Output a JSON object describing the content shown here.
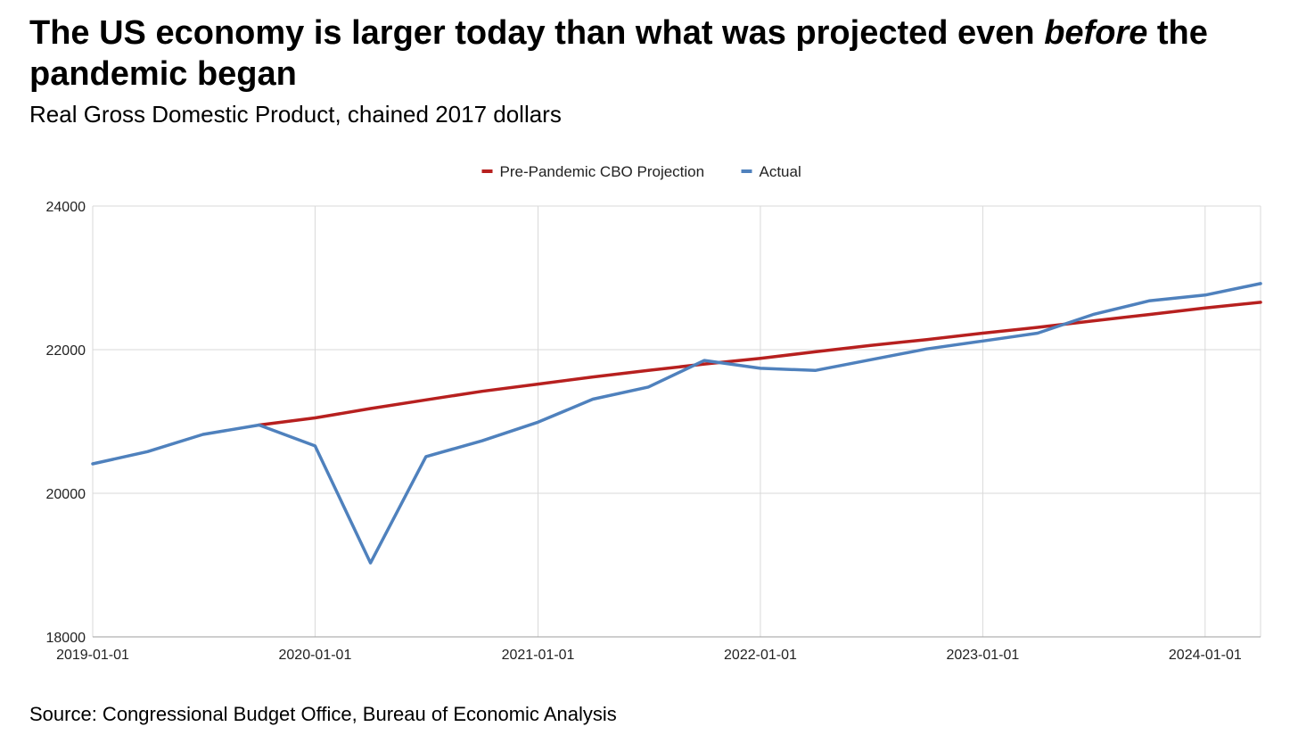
{
  "header": {
    "title_before": "The US economy is larger today than what was projected even ",
    "title_emphasis": "before",
    "title_after": " the pandemic began",
    "subtitle": "Real Gross Domestic Product, chained 2017 dollars"
  },
  "footer": {
    "source": "Source: Congressional Budget Office, Bureau of Economic Analysis"
  },
  "chart_data": {
    "type": "line",
    "title": "",
    "xlabel": "",
    "ylabel": "",
    "xlim": [
      "2019-01-01",
      "2024-04-01"
    ],
    "ylim": [
      18000,
      24000
    ],
    "x_ticks": [
      "2019-01-01",
      "2020-01-01",
      "2021-01-01",
      "2022-01-01",
      "2023-01-01",
      "2024-01-01"
    ],
    "y_ticks": [
      18000,
      20000,
      22000,
      24000
    ],
    "grid": true,
    "legend_position": "top-center",
    "series": [
      {
        "name": "Pre-Pandemic CBO Projection",
        "color": "#b7201f",
        "x": [
          "2019-10-01",
          "2020-01-01",
          "2020-04-01",
          "2020-07-01",
          "2020-10-01",
          "2021-01-01",
          "2021-04-01",
          "2021-07-01",
          "2021-10-01",
          "2022-01-01",
          "2022-04-01",
          "2022-07-01",
          "2022-10-01",
          "2023-01-01",
          "2023-04-01",
          "2023-07-01",
          "2023-10-01",
          "2024-01-01",
          "2024-04-01"
        ],
        "y": [
          20950,
          21050,
          21180,
          21300,
          21420,
          21520,
          21620,
          21710,
          21800,
          21880,
          21970,
          22060,
          22140,
          22230,
          22310,
          22400,
          22490,
          22580,
          22660
        ]
      },
      {
        "name": "Actual",
        "color": "#4f81bd",
        "x": [
          "2019-01-01",
          "2019-04-01",
          "2019-07-01",
          "2019-10-01",
          "2020-01-01",
          "2020-04-01",
          "2020-07-01",
          "2020-10-01",
          "2021-01-01",
          "2021-04-01",
          "2021-07-01",
          "2021-10-01",
          "2022-01-01",
          "2022-04-01",
          "2022-07-01",
          "2022-10-01",
          "2023-01-01",
          "2023-04-01",
          "2023-07-01",
          "2023-10-01",
          "2024-01-01",
          "2024-04-01"
        ],
        "y": [
          20410,
          20580,
          20820,
          20950,
          20660,
          19030,
          20510,
          20730,
          20990,
          21310,
          21480,
          21850,
          21740,
          21710,
          21860,
          22010,
          22120,
          22230,
          22490,
          22680,
          22760,
          22920
        ]
      }
    ]
  }
}
